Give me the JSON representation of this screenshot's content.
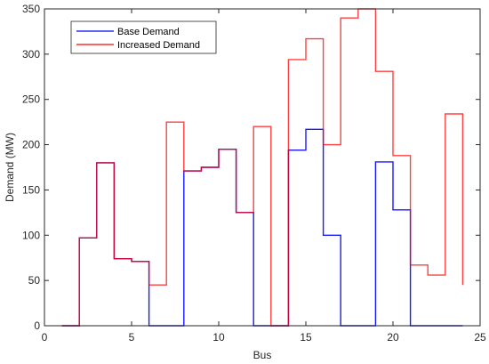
{
  "chart_data": {
    "type": "line",
    "step": "post",
    "xlabel": "Bus",
    "ylabel": "Demand (MW)",
    "xlim": [
      0,
      25
    ],
    "ylim": [
      0,
      350
    ],
    "xticks": [
      0,
      5,
      10,
      15,
      20,
      25
    ],
    "yticks": [
      0,
      50,
      100,
      150,
      200,
      250,
      300,
      350
    ],
    "grid": false,
    "legend_position": "top-left",
    "x": [
      1,
      2,
      3,
      4,
      5,
      6,
      7,
      8,
      9,
      10,
      11,
      12,
      13,
      14,
      15,
      16,
      17,
      18,
      19,
      20,
      21,
      22,
      23,
      24
    ],
    "series": [
      {
        "name": "Base Demand",
        "color": "#0000ff",
        "values": [
          0,
          97,
          180,
          74,
          71,
          0,
          0,
          171,
          175,
          195,
          125,
          0,
          0,
          194,
          217,
          100,
          0,
          0,
          181,
          128,
          0,
          0,
          0,
          0
        ]
      },
      {
        "name": "Increased Demand",
        "color": "#ff0000",
        "values": [
          0,
          97,
          180,
          74,
          71,
          45,
          225,
          171,
          175,
          195,
          125,
          220,
          0,
          294,
          317,
          200,
          340,
          350,
          281,
          188,
          67,
          56,
          234,
          45
        ]
      }
    ]
  }
}
